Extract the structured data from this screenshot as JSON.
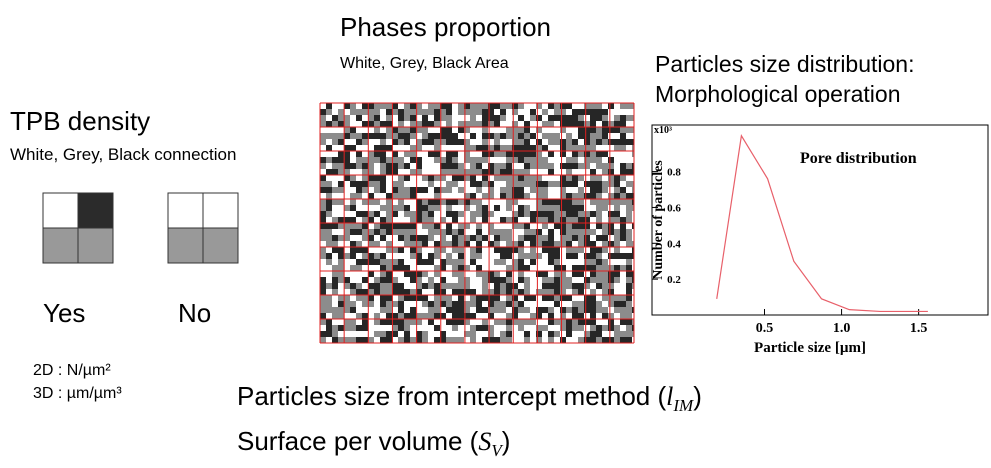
{
  "phases": {
    "title": "Phases proportion",
    "subtitle": "White, Grey, Black Area"
  },
  "tpb": {
    "title": "TPB density",
    "subtitle": "White, Grey, Black connection",
    "yes": "Yes",
    "no": "No",
    "unit_2d": "2D : N/µm²",
    "unit_3d": "3D : µm/µm³"
  },
  "distribution": {
    "title": "Particles size distribution:",
    "subtitle": "Morphological operation"
  },
  "intercept": {
    "prefix": "Particles size from intercept method (",
    "symbol": "l",
    "sub": "IM",
    "suffix": ")"
  },
  "surface": {
    "prefix": "Surface per volume (",
    "symbol": "S",
    "sub": "V",
    "suffix": ")"
  },
  "chart_data": {
    "type": "line",
    "annotation": "Pore distribution",
    "y_multiplier": "x10³",
    "x_label": "Particle size [µm]",
    "y_label": "Number of particles",
    "x": [
      0.19,
      0.35,
      0.52,
      0.69,
      0.87,
      1.05,
      1.25,
      1.56
    ],
    "series": [
      {
        "name": "Pore distribution",
        "color": "#e8606a",
        "values": [
          0.09,
          1.0,
          0.76,
          0.3,
          0.09,
          0.03,
          0.02,
          0.02
        ]
      }
    ],
    "xlim": [
      -0.23,
      1.95
    ],
    "ylim": [
      0,
      1.06
    ],
    "xticks": [
      0.5,
      {
        "value": 1,
        "label": "1.0"
      },
      1.5
    ],
    "yticks": [
      0.2,
      0.4,
      0.6,
      0.8
    ]
  }
}
